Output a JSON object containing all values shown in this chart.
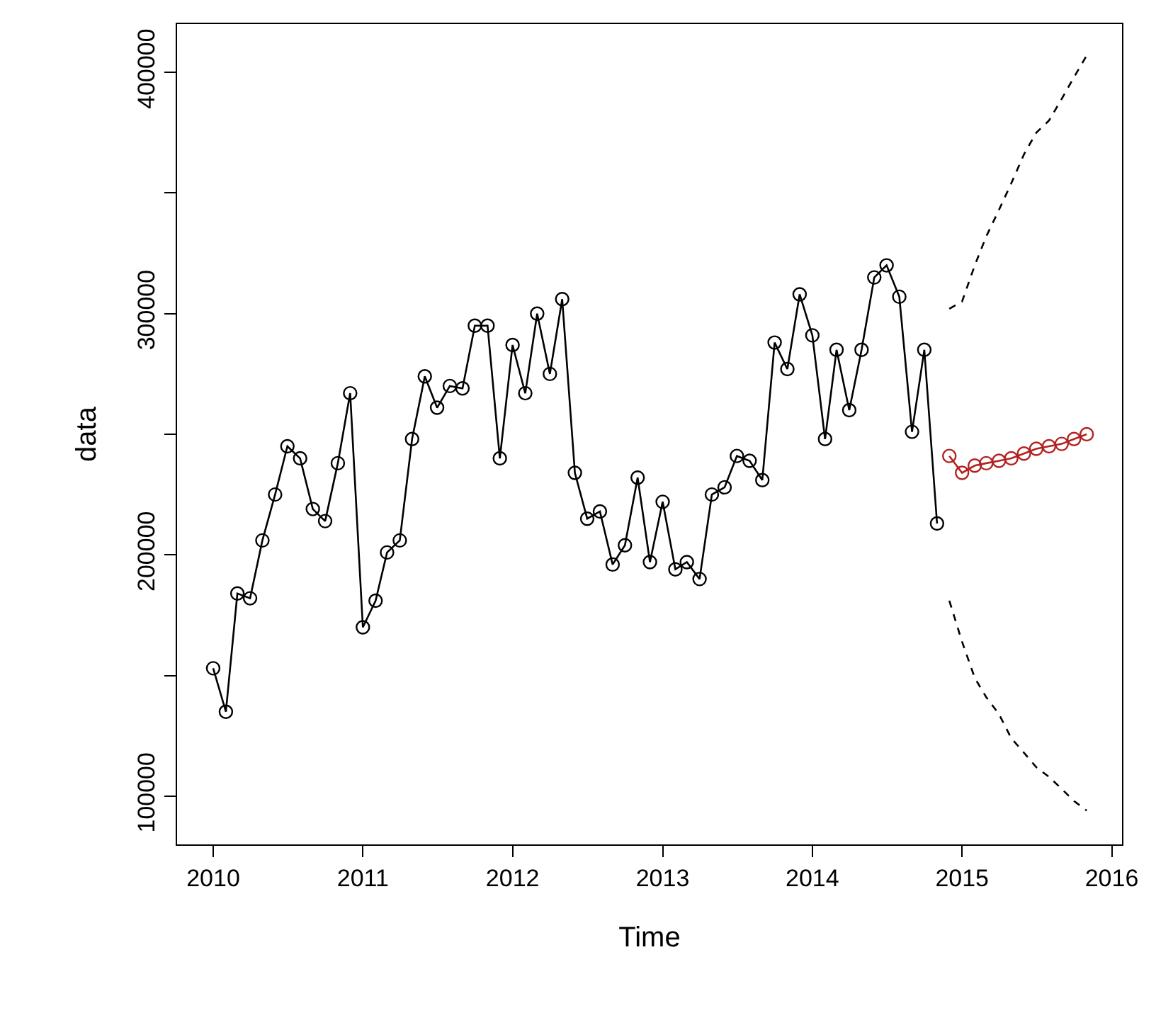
{
  "chart_data": {
    "type": "line",
    "xlabel": "Time",
    "ylabel": "data",
    "x": [
      "2010-01",
      "2010-02",
      "2010-03",
      "2010-04",
      "2010-05",
      "2010-06",
      "2010-07",
      "2010-08",
      "2010-09",
      "2010-10",
      "2010-11",
      "2010-12",
      "2011-01",
      "2011-02",
      "2011-03",
      "2011-04",
      "2011-05",
      "2011-06",
      "2011-07",
      "2011-08",
      "2011-09",
      "2011-10",
      "2011-11",
      "2011-12",
      "2012-01",
      "2012-02",
      "2012-03",
      "2012-04",
      "2012-05",
      "2012-06",
      "2012-07",
      "2012-08",
      "2012-09",
      "2012-10",
      "2012-11",
      "2012-12",
      "2013-01",
      "2013-02",
      "2013-03",
      "2013-04",
      "2013-05",
      "2013-06",
      "2013-07",
      "2013-08",
      "2013-09",
      "2013-10",
      "2013-11",
      "2013-12",
      "2014-01",
      "2014-02",
      "2014-03",
      "2014-04",
      "2014-05",
      "2014-06",
      "2014-07",
      "2014-08",
      "2014-09",
      "2014-10",
      "2014-11"
    ],
    "series": [
      {
        "color": "#000000",
        "marker": "circle",
        "line_style": "solid",
        "values": [
          153000,
          135000,
          184000,
          182000,
          206000,
          225000,
          245000,
          240000,
          219000,
          214000,
          238000,
          267000,
          170000,
          181000,
          201000,
          206000,
          248000,
          274000,
          261000,
          270000,
          269000,
          295000,
          295000,
          240000,
          287000,
          267000,
          300000,
          275000,
          306000,
          234000,
          215000,
          218000,
          196000,
          204000,
          232000,
          197000,
          222000,
          194000,
          197000,
          190000,
          225000,
          228000,
          241000,
          239000,
          231000,
          288000,
          277000,
          308000,
          291000,
          248000,
          285000,
          260000,
          285000,
          315000,
          320000,
          307000,
          251000,
          285000,
          213000
        ]
      },
      {
        "color": "#b22222",
        "marker": "circle",
        "line_style": "solid",
        "x": [
          "2014-12",
          "2015-01",
          "2015-02",
          "2015-03",
          "2015-04",
          "2015-05",
          "2015-06",
          "2015-07",
          "2015-08",
          "2015-09",
          "2015-10",
          "2015-11"
        ],
        "values": [
          241000,
          234000,
          237000,
          238000,
          239000,
          240000,
          242000,
          244000,
          245000,
          246000,
          248000,
          250000
        ]
      },
      {
        "color": "#000000",
        "marker": "none",
        "line_style": "dashed",
        "x": [
          "2014-12",
          "2015-01",
          "2015-02",
          "2015-03",
          "2015-04",
          "2015-05",
          "2015-06",
          "2015-07",
          "2015-08",
          "2015-09",
          "2015-10",
          "2015-11"
        ],
        "values": [
          302000,
          305000,
          320000,
          332000,
          343000,
          354000,
          366000,
          375000,
          380000,
          389000,
          398000,
          407000
        ]
      },
      {
        "color": "#000000",
        "marker": "none",
        "line_style": "dashed",
        "x": [
          "2014-12",
          "2015-01",
          "2015-02",
          "2015-03",
          "2015-04",
          "2015-05",
          "2015-06",
          "2015-07",
          "2015-08",
          "2015-09",
          "2015-10",
          "2015-11"
        ],
        "values": [
          181000,
          164000,
          149000,
          141000,
          134000,
          124000,
          118000,
          112000,
          108000,
          103000,
          98000,
          94000
        ]
      }
    ],
    "xlim": [
      "2009-10-05",
      "2016-01-26"
    ],
    "xticks": [
      "2010",
      "2011",
      "2012",
      "2013",
      "2014",
      "2015",
      "2016"
    ],
    "ylim": [
      80000,
      420000
    ],
    "yticks": [
      100000,
      {
        "value": 150000,
        "label": null
      },
      200000,
      {
        "value": 250000,
        "label": null
      },
      300000,
      {
        "value": 350000,
        "label": null
      },
      400000
    ]
  }
}
